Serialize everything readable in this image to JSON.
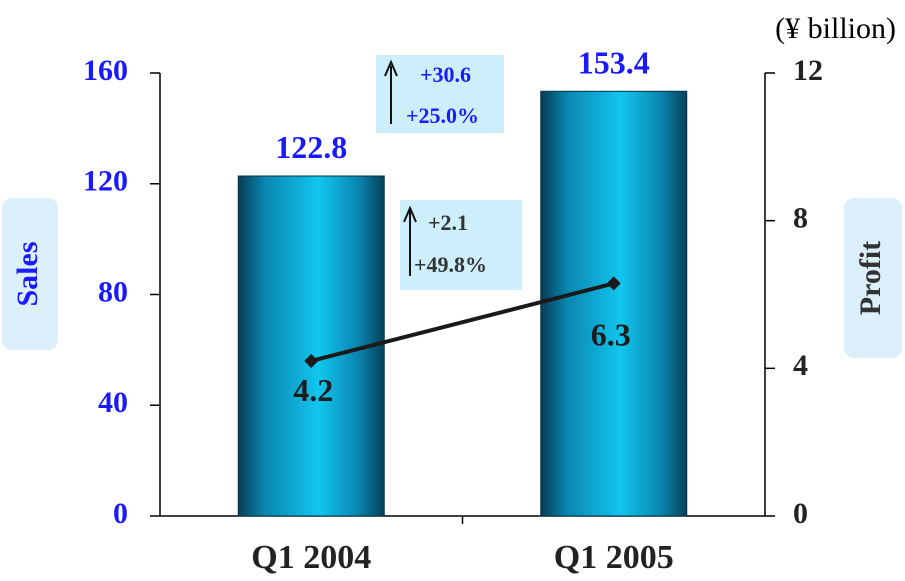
{
  "chart_data": {
    "type": "bar",
    "unit_label": "(¥ billion)",
    "categories": [
      "Q1 2004",
      "Q1 2005"
    ],
    "series": [
      {
        "name": "Sales",
        "type": "bar",
        "axis": "left",
        "values": [
          122.8,
          153.4
        ],
        "labels": [
          "122.8",
          "153.4"
        ]
      },
      {
        "name": "Profit",
        "type": "line",
        "axis": "right",
        "values": [
          4.2,
          6.3
        ],
        "labels": [
          "4.2",
          "6.3"
        ]
      }
    ],
    "left_axis": {
      "title": "Sales",
      "ylim": [
        0,
        160
      ],
      "ticks": [
        "0",
        "40",
        "80",
        "120",
        "160"
      ]
    },
    "right_axis": {
      "title": "Profit",
      "ylim": [
        0,
        12
      ],
      "ticks": [
        "0",
        "4",
        "8",
        "12"
      ]
    },
    "annotations": {
      "sales_change": {
        "abs": "+30.6",
        "pct": "+25.0%"
      },
      "profit_change": {
        "abs": "+2.1",
        "pct": "+49.8%"
      }
    },
    "colors": {
      "bar": "#0aa3cf",
      "axis_title_bg": "#dcf0fb",
      "left_ticks": "#1a1aff",
      "line": "#1a1a1a",
      "annotation_bg": "#cdeefb"
    }
  }
}
